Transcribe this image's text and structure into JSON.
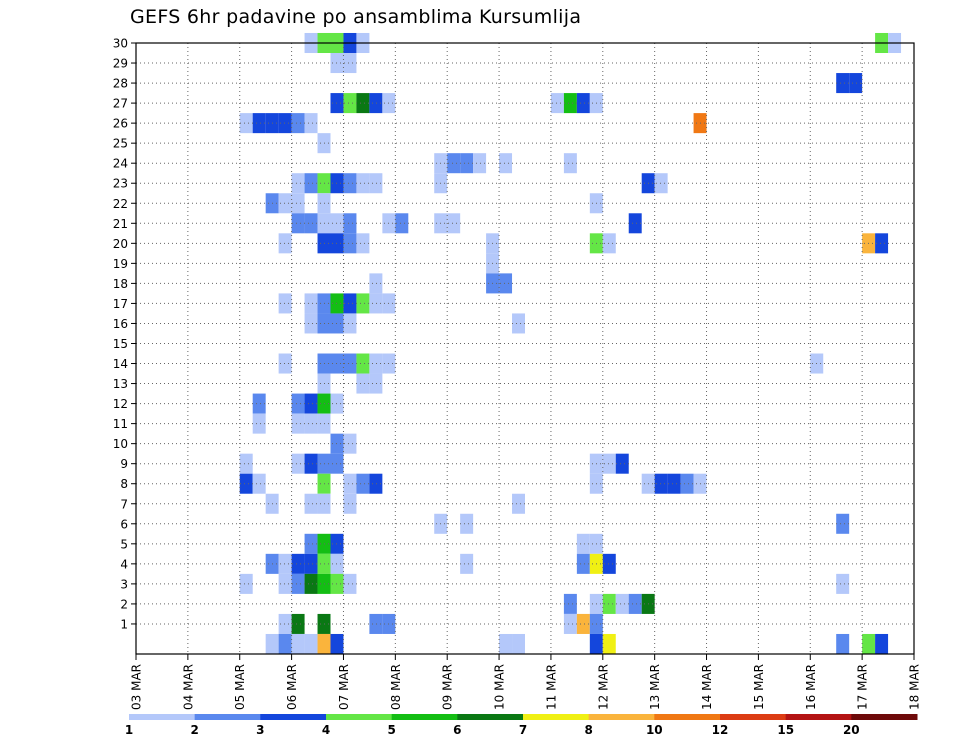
{
  "title": "GEFS 6hr padavine po ansamblima Kursumlija",
  "colors": {
    "c1": "#b4c8fa",
    "c2": "#5a88ee",
    "c3": "#1446dc",
    "c4": "#64e646",
    "c5": "#14be14",
    "c6": "#0a7814",
    "c7": "#f0f014",
    "c8": "#fab43c",
    "c10": "#f07814",
    "c12": "#dc3c14",
    "c15": "#b41414",
    "c20": "#6e0a0a"
  },
  "chart_data": {
    "type": "heatmap",
    "title": "GEFS 6hr padavine po ansamblima Kursumlija",
    "x_labels": [
      "03 MAR",
      "04 MAR",
      "05 MAR",
      "06 MAR",
      "07 MAR",
      "08 MAR",
      "09 MAR",
      "10 MAR",
      "11 MAR",
      "12 MAR",
      "13 MAR",
      "14 MAR",
      "15 MAR",
      "16 MAR",
      "17 MAR",
      "18 MAR"
    ],
    "y_labels": [
      "1",
      "2",
      "3",
      "4",
      "5",
      "6",
      "7",
      "8",
      "9",
      "10",
      "11",
      "12",
      "13",
      "14",
      "15",
      "16",
      "17",
      "18",
      "19",
      "20",
      "21",
      "22",
      "23",
      "24",
      "25",
      "26",
      "27",
      "28",
      "29",
      "30"
    ],
    "y_range": [
      0,
      30
    ],
    "x_range": [
      "03 MAR 00z",
      "18 MAR 00z"
    ],
    "time_step": "6hr",
    "grid": true,
    "colorbar": {
      "labels": [
        "1",
        "2",
        "3",
        "4",
        "5",
        "6",
        "7",
        "8",
        "10",
        "12",
        "15",
        "20"
      ],
      "colors": [
        "#b4c8fa",
        "#5a88ee",
        "#1446dc",
        "#64e646",
        "#14be14",
        "#0a7814",
        "#f0f014",
        "#fab43c",
        "#f07814",
        "#dc3c14",
        "#b41414",
        "#6e0a0a"
      ]
    },
    "cells": [
      [
        30,
        "06 MAR 06z",
        1
      ],
      [
        30,
        "06 MAR 12z",
        4
      ],
      [
        30,
        "06 MAR 18z",
        4
      ],
      [
        30,
        "07 MAR 00z",
        3
      ],
      [
        30,
        "07 MAR 06z",
        1
      ],
      [
        30,
        "17 MAR 06z",
        4
      ],
      [
        30,
        "17 MAR 12z",
        1
      ],
      [
        29,
        "06 MAR 18z",
        1
      ],
      [
        29,
        "07 MAR 00z",
        1
      ],
      [
        28,
        "16 MAR 12z",
        3
      ],
      [
        28,
        "16 MAR 18z",
        3
      ],
      [
        27,
        "06 MAR 18z",
        3
      ],
      [
        27,
        "07 MAR 00z",
        4
      ],
      [
        27,
        "07 MAR 06z",
        6
      ],
      [
        27,
        "07 MAR 12z",
        3
      ],
      [
        27,
        "07 MAR 18z",
        1
      ],
      [
        27,
        "11 MAR 00z",
        1
      ],
      [
        27,
        "11 MAR 06z",
        5
      ],
      [
        27,
        "11 MAR 12z",
        3
      ],
      [
        27,
        "11 MAR 18z",
        1
      ],
      [
        26,
        "05 MAR 00z",
        1
      ],
      [
        26,
        "05 MAR 06z",
        3
      ],
      [
        26,
        "05 MAR 12z",
        3
      ],
      [
        26,
        "05 MAR 18z",
        3
      ],
      [
        26,
        "06 MAR 00z",
        2
      ],
      [
        26,
        "06 MAR 06z",
        1
      ],
      [
        26,
        "13 MAR 18z",
        10
      ],
      [
        25,
        "06 MAR 12z",
        1
      ],
      [
        24,
        "08 MAR 18z",
        1
      ],
      [
        24,
        "09 MAR 00z",
        2
      ],
      [
        24,
        "09 MAR 06z",
        2
      ],
      [
        24,
        "09 MAR 12z",
        1
      ],
      [
        24,
        "10 MAR 00z",
        1
      ],
      [
        24,
        "11 MAR 06z",
        1
      ],
      [
        23,
        "06 MAR 00z",
        1
      ],
      [
        23,
        "06 MAR 06z",
        2
      ],
      [
        23,
        "06 MAR 12z",
        4
      ],
      [
        23,
        "06 MAR 18z",
        3
      ],
      [
        23,
        "07 MAR 00z",
        2
      ],
      [
        23,
        "07 MAR 06z",
        1
      ],
      [
        23,
        "07 MAR 12z",
        1
      ],
      [
        23,
        "08 MAR 18z",
        1
      ],
      [
        23,
        "12 MAR 18z",
        3
      ],
      [
        23,
        "13 MAR 00z",
        1
      ],
      [
        22,
        "05 MAR 12z",
        2
      ],
      [
        22,
        "05 MAR 18z",
        1
      ],
      [
        22,
        "06 MAR 00z",
        1
      ],
      [
        22,
        "06 MAR 12z",
        1
      ],
      [
        22,
        "11 MAR 18z",
        1
      ],
      [
        21,
        "06 MAR 00z",
        2
      ],
      [
        21,
        "06 MAR 06z",
        2
      ],
      [
        21,
        "06 MAR 12z",
        1
      ],
      [
        21,
        "06 MAR 18z",
        1
      ],
      [
        21,
        "07 MAR 00z",
        2
      ],
      [
        21,
        "07 MAR 18z",
        1
      ],
      [
        21,
        "08 MAR 00z",
        2
      ],
      [
        21,
        "08 MAR 18z",
        1
      ],
      [
        21,
        "09 MAR 00z",
        1
      ],
      [
        21,
        "12 MAR 12z",
        3
      ],
      [
        20,
        "05 MAR 18z",
        1
      ],
      [
        20,
        "06 MAR 12z",
        3
      ],
      [
        20,
        "06 MAR 18z",
        3
      ],
      [
        20,
        "07 MAR 00z",
        2
      ],
      [
        20,
        "07 MAR 06z",
        1
      ],
      [
        20,
        "09 MAR 18z",
        1
      ],
      [
        20,
        "11 MAR 18z",
        4
      ],
      [
        20,
        "12 MAR 00z",
        1
      ],
      [
        20,
        "17 MAR 00z",
        8
      ],
      [
        20,
        "17 MAR 06z",
        3
      ],
      [
        19,
        "09 MAR 18z",
        1
      ],
      [
        18,
        "09 MAR 18z",
        2
      ],
      [
        18,
        "10 MAR 00z",
        2
      ],
      [
        18,
        "07 MAR 12z",
        1
      ],
      [
        17,
        "05 MAR 18z",
        1
      ],
      [
        17,
        "06 MAR 06z",
        1
      ],
      [
        17,
        "06 MAR 12z",
        2
      ],
      [
        17,
        "06 MAR 18z",
        5
      ],
      [
        17,
        "07 MAR 00z",
        3
      ],
      [
        17,
        "07 MAR 06z",
        4
      ],
      [
        17,
        "07 MAR 12z",
        1
      ],
      [
        17,
        "07 MAR 18z",
        1
      ],
      [
        16,
        "06 MAR 06z",
        1
      ],
      [
        16,
        "06 MAR 12z",
        2
      ],
      [
        16,
        "06 MAR 18z",
        2
      ],
      [
        16,
        "07 MAR 00z",
        1
      ],
      [
        16,
        "10 MAR 06z",
        1
      ],
      [
        14,
        "05 MAR 18z",
        1
      ],
      [
        14,
        "06 MAR 12z",
        2
      ],
      [
        14,
        "06 MAR 18z",
        2
      ],
      [
        14,
        "07 MAR 00z",
        2
      ],
      [
        14,
        "07 MAR 06z",
        4
      ],
      [
        14,
        "07 MAR 12z",
        1
      ],
      [
        14,
        "07 MAR 18z",
        1
      ],
      [
        14,
        "16 MAR 00z",
        1
      ],
      [
        13,
        "06 MAR 12z",
        1
      ],
      [
        13,
        "07 MAR 06z",
        1
      ],
      [
        13,
        "07 MAR 12z",
        1
      ],
      [
        12,
        "05 MAR 06z",
        2
      ],
      [
        12,
        "06 MAR 00z",
        2
      ],
      [
        12,
        "06 MAR 06z",
        3
      ],
      [
        12,
        "06 MAR 12z",
        5
      ],
      [
        12,
        "06 MAR 18z",
        1
      ],
      [
        11,
        "05 MAR 06z",
        1
      ],
      [
        11,
        "06 MAR 00z",
        1
      ],
      [
        11,
        "06 MAR 06z",
        1
      ],
      [
        11,
        "06 MAR 12z",
        1
      ],
      [
        10,
        "06 MAR 18z",
        2
      ],
      [
        10,
        "07 MAR 00z",
        1
      ],
      [
        9,
        "05 MAR 00z",
        1
      ],
      [
        9,
        "06 MAR 00z",
        1
      ],
      [
        9,
        "06 MAR 06z",
        3
      ],
      [
        9,
        "06 MAR 12z",
        2
      ],
      [
        9,
        "06 MAR 18z",
        2
      ],
      [
        9,
        "11 MAR 18z",
        1
      ],
      [
        9,
        "12 MAR 00z",
        1
      ],
      [
        9,
        "12 MAR 06z",
        3
      ],
      [
        8,
        "05 MAR 00z",
        3
      ],
      [
        8,
        "05 MAR 06z",
        1
      ],
      [
        8,
        "06 MAR 12z",
        4
      ],
      [
        8,
        "07 MAR 00z",
        1
      ],
      [
        8,
        "07 MAR 06z",
        2
      ],
      [
        8,
        "07 MAR 12z",
        3
      ],
      [
        8,
        "11 MAR 18z",
        1
      ],
      [
        8,
        "12 MAR 18z",
        1
      ],
      [
        8,
        "13 MAR 00z",
        3
      ],
      [
        8,
        "13 MAR 06z",
        3
      ],
      [
        8,
        "13 MAR 12z",
        2
      ],
      [
        8,
        "13 MAR 18z",
        1
      ],
      [
        7,
        "05 MAR 12z",
        1
      ],
      [
        7,
        "06 MAR 06z",
        1
      ],
      [
        7,
        "06 MAR 12z",
        1
      ],
      [
        7,
        "07 MAR 00z",
        1
      ],
      [
        7,
        "10 MAR 06z",
        1
      ],
      [
        6,
        "08 MAR 18z",
        1
      ],
      [
        6,
        "09 MAR 06z",
        1
      ],
      [
        6,
        "16 MAR 12z",
        2
      ],
      [
        5,
        "06 MAR 06z",
        2
      ],
      [
        5,
        "06 MAR 12z",
        5
      ],
      [
        5,
        "06 MAR 18z",
        3
      ],
      [
        5,
        "11 MAR 12z",
        1
      ],
      [
        5,
        "11 MAR 18z",
        1
      ],
      [
        4,
        "05 MAR 12z",
        2
      ],
      [
        4,
        "05 MAR 18z",
        1
      ],
      [
        4,
        "06 MAR 00z",
        3
      ],
      [
        4,
        "06 MAR 06z",
        3
      ],
      [
        4,
        "06 MAR 12z",
        4
      ],
      [
        4,
        "06 MAR 18z",
        1
      ],
      [
        4,
        "09 MAR 06z",
        1
      ],
      [
        4,
        "11 MAR 12z",
        2
      ],
      [
        4,
        "11 MAR 18z",
        7
      ],
      [
        4,
        "12 MAR 00z",
        3
      ],
      [
        3,
        "05 MAR 00z",
        1
      ],
      [
        3,
        "05 MAR 18z",
        1
      ],
      [
        3,
        "06 MAR 00z",
        2
      ],
      [
        3,
        "06 MAR 06z",
        6
      ],
      [
        3,
        "06 MAR 12z",
        5
      ],
      [
        3,
        "06 MAR 18z",
        4
      ],
      [
        3,
        "07 MAR 00z",
        1
      ],
      [
        3,
        "16 MAR 12z",
        1
      ],
      [
        2,
        "11 MAR 06z",
        2
      ],
      [
        2,
        "11 MAR 18z",
        1
      ],
      [
        2,
        "12 MAR 00z",
        4
      ],
      [
        2,
        "12 MAR 06z",
        1
      ],
      [
        2,
        "12 MAR 12z",
        2
      ],
      [
        2,
        "12 MAR 18z",
        6
      ],
      [
        1,
        "05 MAR 18z",
        1
      ],
      [
        1,
        "06 MAR 00z",
        6
      ],
      [
        1,
        "06 MAR 12z",
        6
      ],
      [
        1,
        "07 MAR 12z",
        2
      ],
      [
        1,
        "07 MAR 18z",
        2
      ],
      [
        1,
        "11 MAR 06z",
        1
      ],
      [
        1,
        "11 MAR 12z",
        8
      ],
      [
        1,
        "11 MAR 18z",
        2
      ],
      [
        0,
        "05 MAR 12z",
        1
      ],
      [
        0,
        "05 MAR 18z",
        2
      ],
      [
        0,
        "06 MAR 00z",
        1
      ],
      [
        0,
        "06 MAR 06z",
        1
      ],
      [
        0,
        "06 MAR 12z",
        8
      ],
      [
        0,
        "06 MAR 18z",
        3
      ],
      [
        0,
        "10 MAR 00z",
        1
      ],
      [
        0,
        "10 MAR 06z",
        1
      ],
      [
        0,
        "11 MAR 18z",
        3
      ],
      [
        0,
        "12 MAR 00z",
        7
      ],
      [
        0,
        "16 MAR 12z",
        2
      ],
      [
        0,
        "17 MAR 00z",
        4
      ],
      [
        0,
        "17 MAR 06z",
        3
      ]
    ]
  }
}
